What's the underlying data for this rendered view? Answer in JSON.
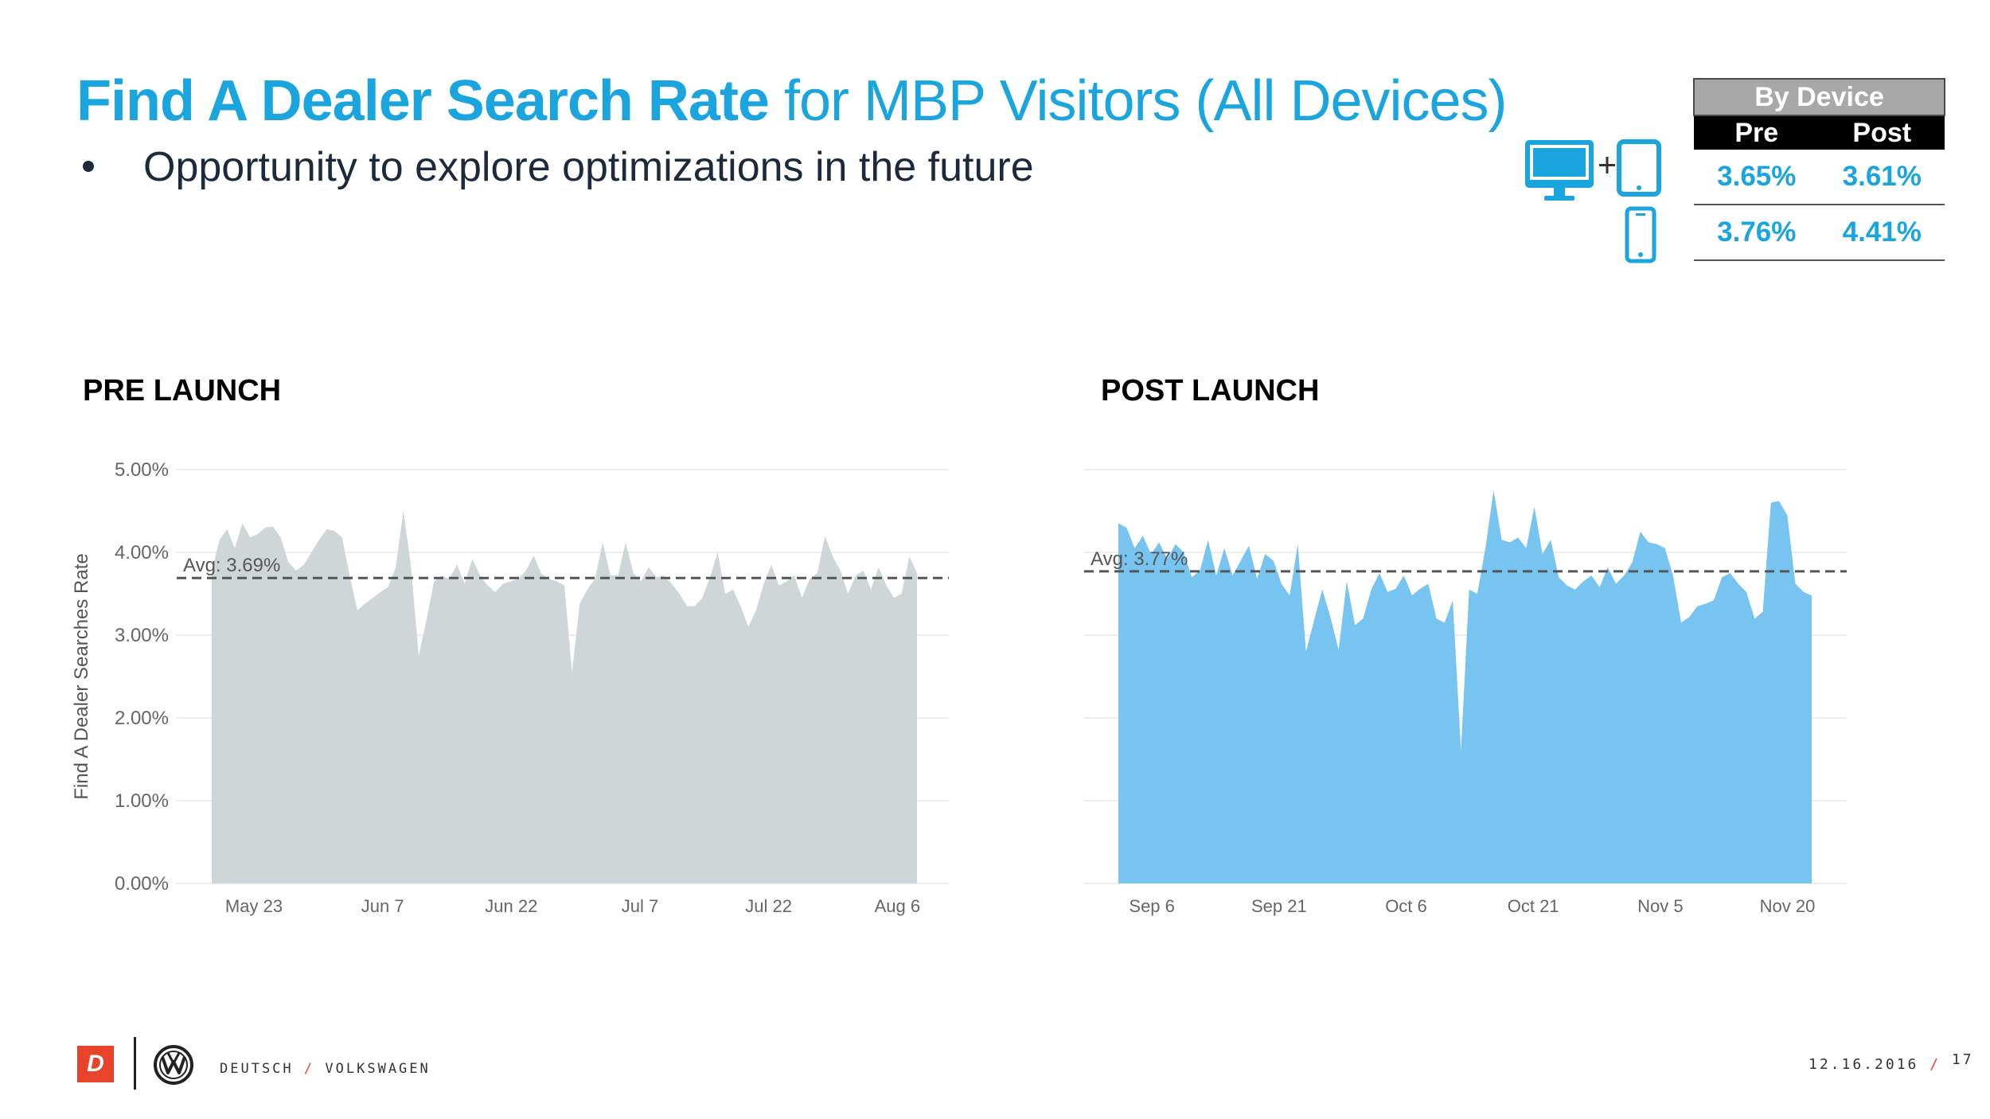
{
  "header": {
    "title_bold": "Find A Dealer Search Rate",
    "title_rest": " for MBP Visitors (All Devices)",
    "bullet": "Opportunity to explore optimizations in the future"
  },
  "device_table": {
    "title": "By Device",
    "col_pre": "Pre",
    "col_post": "Post",
    "rows": [
      {
        "device": "desktop+tablet",
        "pre": "3.65%",
        "post": "3.61%"
      },
      {
        "device": "mobile",
        "pre": "3.76%",
        "post": "4.41%"
      }
    ]
  },
  "sections": {
    "pre": "PRE LAUNCH",
    "post": "POST LAUNCH"
  },
  "colors": {
    "accent": "#1aa5df",
    "pre_fill": "#d0d6d8",
    "post_fill": "#77c4f0",
    "brand_red": "#e8442c"
  },
  "chart_data": [
    {
      "type": "area",
      "name": "pre-launch",
      "ylabel": "Find A Dealer Searches Rate",
      "ylim": [
        0,
        5
      ],
      "y_ticks": [
        "5.00%",
        "4.00%",
        "3.00%",
        "2.00%",
        "1.00%",
        "0.00%"
      ],
      "x_ticks": [
        "May 23",
        "Jun 7",
        "Jun 22",
        "Jul 7",
        "Jul 22",
        "Aug 6"
      ],
      "x_tick_days": [
        9,
        24,
        39,
        54,
        69,
        84
      ],
      "x_days": 90,
      "avg_label": "Avg: 3.69%",
      "avg": 3.69,
      "values": [
        3.76,
        4.15,
        4.28,
        4.05,
        4.35,
        4.18,
        4.22,
        4.3,
        4.31,
        4.18,
        3.88,
        3.78,
        3.85,
        4.0,
        4.15,
        4.28,
        4.26,
        4.18,
        3.72,
        3.3,
        3.38,
        3.45,
        3.52,
        3.58,
        3.82,
        4.5,
        3.82,
        2.75,
        3.18,
        3.65,
        3.72,
        3.68,
        3.85,
        3.62,
        3.92,
        3.72,
        3.6,
        3.52,
        3.62,
        3.65,
        3.68,
        3.78,
        3.96,
        3.74,
        3.68,
        3.65,
        3.6,
        2.55,
        3.38,
        3.55,
        3.68,
        4.12,
        3.72,
        3.72,
        4.12,
        3.75,
        3.65,
        3.82,
        3.7,
        3.72,
        3.62,
        3.5,
        3.35,
        3.35,
        3.45,
        3.7,
        4.0,
        3.5,
        3.55,
        3.35,
        3.1,
        3.3,
        3.62,
        3.85,
        3.6,
        3.65,
        3.72,
        3.45,
        3.68,
        3.75,
        4.2,
        3.95,
        3.78,
        3.5,
        3.72,
        3.78,
        3.55,
        3.82,
        3.6,
        3.45,
        3.5,
        3.95,
        3.75
      ]
    },
    {
      "type": "area",
      "name": "post-launch",
      "ylim": [
        0,
        5
      ],
      "x_ticks": [
        "Sep 6",
        "Sep 21",
        "Oct 6",
        "Oct 21",
        "Nov 5",
        "Nov 20"
      ],
      "x_tick_days": [
        8,
        23,
        38,
        53,
        68,
        83
      ],
      "x_days": 90,
      "avg_label": "Avg: 3.77%",
      "avg": 3.77,
      "values": [
        4.35,
        4.3,
        4.05,
        4.2,
        3.98,
        4.12,
        3.92,
        4.1,
        4.0,
        3.7,
        3.78,
        4.15,
        3.72,
        4.05,
        3.72,
        3.9,
        4.08,
        3.68,
        3.98,
        3.9,
        3.62,
        3.48,
        4.1,
        2.8,
        3.18,
        3.55,
        3.22,
        2.82,
        3.65,
        3.12,
        3.2,
        3.55,
        3.75,
        3.52,
        3.56,
        3.72,
        3.48,
        3.56,
        3.62,
        3.2,
        3.15,
        3.42,
        1.6,
        3.55,
        3.5,
        4.05,
        4.75,
        4.15,
        4.12,
        4.18,
        4.05,
        4.55,
        3.98,
        4.15,
        3.7,
        3.6,
        3.55,
        3.65,
        3.72,
        3.58,
        3.82,
        3.62,
        3.72,
        3.88,
        4.25,
        4.12,
        4.1,
        4.05,
        3.72,
        3.15,
        3.22,
        3.35,
        3.38,
        3.42,
        3.7,
        3.75,
        3.62,
        3.52,
        3.2,
        3.28,
        4.6,
        4.62,
        4.45,
        3.62,
        3.52,
        3.48
      ]
    }
  ],
  "footer": {
    "logo_letter": "D",
    "brand": "DEUTSCH",
    "sep": "/",
    "partner": "VOLKSWAGEN",
    "date": "12.16.2016",
    "page": "17"
  }
}
